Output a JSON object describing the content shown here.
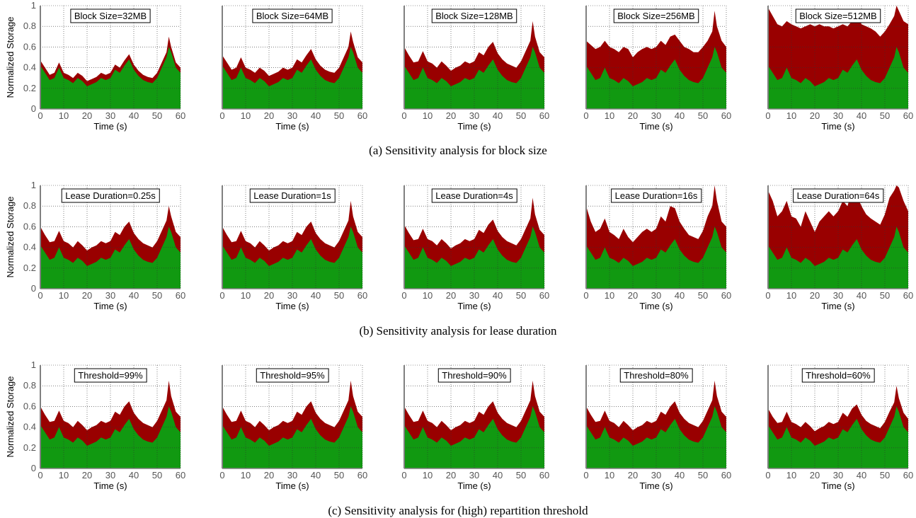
{
  "colors": {
    "used": "#119911",
    "allocated": "#990000"
  },
  "captions": [
    "(a)  Sensitivity analysis for block size",
    "(b)  Sensitivity analysis for lease duration",
    "(c)  Sensitivity analysis for (high) repartition threshold"
  ],
  "chart_data": [
    {
      "type": "area",
      "ylabel": "Normalized Storage",
      "xlabel": "Time (s)",
      "xlim": [
        0,
        60
      ],
      "ylim": [
        0,
        1
      ],
      "x_ticks": [
        0,
        10,
        20,
        30,
        40,
        50,
        60
      ],
      "y_ticks": [
        0,
        0.2,
        0.4,
        0.6,
        0.8,
        1
      ],
      "y_tick_labels": [
        "0",
        "0.2",
        "0.4",
        "0.6",
        "0.8",
        "1"
      ],
      "grid": true,
      "x": [
        0,
        2,
        4,
        6,
        8,
        10,
        12,
        14,
        16,
        18,
        20,
        22,
        24,
        26,
        28,
        30,
        32,
        34,
        36,
        38,
        40,
        42,
        44,
        46,
        48,
        50,
        52,
        54,
        55,
        56,
        58,
        60
      ],
      "used": [
        0.42,
        0.35,
        0.28,
        0.3,
        0.4,
        0.3,
        0.28,
        0.25,
        0.3,
        0.27,
        0.22,
        0.24,
        0.26,
        0.3,
        0.28,
        0.3,
        0.38,
        0.35,
        0.42,
        0.48,
        0.38,
        0.32,
        0.28,
        0.26,
        0.25,
        0.3,
        0.4,
        0.5,
        0.6,
        0.55,
        0.4,
        0.35
      ],
      "groups": [
        {
          "panels": [
            {
              "label": "Block Size=32MB",
              "allocated": [
                0.47,
                0.4,
                0.33,
                0.35,
                0.45,
                0.35,
                0.33,
                0.3,
                0.35,
                0.32,
                0.27,
                0.29,
                0.31,
                0.35,
                0.33,
                0.35,
                0.43,
                0.4,
                0.47,
                0.53,
                0.43,
                0.37,
                0.33,
                0.31,
                0.3,
                0.35,
                0.45,
                0.55,
                0.7,
                0.6,
                0.45,
                0.4
              ]
            },
            {
              "label": "Block Size=64MB",
              "allocated": [
                0.52,
                0.45,
                0.38,
                0.4,
                0.5,
                0.4,
                0.38,
                0.35,
                0.4,
                0.37,
                0.32,
                0.34,
                0.36,
                0.4,
                0.38,
                0.4,
                0.48,
                0.45,
                0.52,
                0.58,
                0.48,
                0.42,
                0.38,
                0.36,
                0.35,
                0.4,
                0.5,
                0.6,
                0.75,
                0.65,
                0.5,
                0.45
              ]
            },
            {
              "label": "Block Size=128MB",
              "allocated": [
                0.6,
                0.52,
                0.45,
                0.46,
                0.56,
                0.46,
                0.44,
                0.4,
                0.46,
                0.42,
                0.37,
                0.4,
                0.42,
                0.46,
                0.44,
                0.46,
                0.55,
                0.52,
                0.6,
                0.65,
                0.54,
                0.48,
                0.44,
                0.42,
                0.4,
                0.46,
                0.56,
                0.66,
                0.85,
                0.7,
                0.55,
                0.5
              ]
            },
            {
              "label": "Block Size=256MB",
              "allocated": [
                0.66,
                0.62,
                0.58,
                0.6,
                0.66,
                0.6,
                0.58,
                0.55,
                0.6,
                0.58,
                0.5,
                0.55,
                0.58,
                0.6,
                0.58,
                0.6,
                0.66,
                0.62,
                0.7,
                0.72,
                0.66,
                0.6,
                0.58,
                0.55,
                0.55,
                0.6,
                0.66,
                0.75,
                0.95,
                0.8,
                0.66,
                0.6
              ]
            },
            {
              "label": "Block Size=512MB",
              "allocated": [
                0.98,
                0.9,
                0.82,
                0.8,
                0.85,
                0.82,
                0.8,
                0.78,
                0.8,
                0.82,
                0.8,
                0.82,
                0.8,
                0.8,
                0.78,
                0.8,
                0.82,
                0.8,
                0.85,
                0.9,
                0.82,
                0.8,
                0.78,
                0.75,
                0.7,
                0.75,
                0.82,
                0.9,
                1.0,
                0.95,
                0.85,
                0.82
              ]
            }
          ]
        },
        {
          "panels": [
            {
              "label": "Lease Duration=0.25s",
              "allocated": [
                0.6,
                0.52,
                0.45,
                0.46,
                0.56,
                0.46,
                0.44,
                0.4,
                0.46,
                0.42,
                0.37,
                0.4,
                0.42,
                0.46,
                0.44,
                0.46,
                0.55,
                0.52,
                0.6,
                0.65,
                0.54,
                0.48,
                0.44,
                0.42,
                0.4,
                0.46,
                0.56,
                0.66,
                0.8,
                0.7,
                0.55,
                0.5
              ]
            },
            {
              "label": "Lease Duration=1s",
              "allocated": [
                0.6,
                0.52,
                0.45,
                0.46,
                0.56,
                0.46,
                0.44,
                0.4,
                0.46,
                0.42,
                0.37,
                0.4,
                0.42,
                0.46,
                0.44,
                0.46,
                0.55,
                0.52,
                0.6,
                0.65,
                0.54,
                0.48,
                0.44,
                0.42,
                0.4,
                0.46,
                0.56,
                0.66,
                0.85,
                0.7,
                0.55,
                0.5
              ]
            },
            {
              "label": "Lease Duration=4s",
              "allocated": [
                0.62,
                0.54,
                0.47,
                0.48,
                0.58,
                0.48,
                0.46,
                0.42,
                0.48,
                0.44,
                0.39,
                0.42,
                0.44,
                0.48,
                0.46,
                0.48,
                0.57,
                0.54,
                0.62,
                0.67,
                0.56,
                0.5,
                0.46,
                0.44,
                0.42,
                0.48,
                0.58,
                0.68,
                0.88,
                0.72,
                0.57,
                0.52
              ]
            },
            {
              "label": "Lease Duration=16s",
              "allocated": [
                0.8,
                0.65,
                0.55,
                0.58,
                0.68,
                0.55,
                0.52,
                0.48,
                0.58,
                0.5,
                0.45,
                0.5,
                0.55,
                0.58,
                0.55,
                0.58,
                0.7,
                0.65,
                0.8,
                0.78,
                0.65,
                0.58,
                0.52,
                0.5,
                0.48,
                0.56,
                0.7,
                0.8,
                1.0,
                0.85,
                0.65,
                0.6
              ]
            },
            {
              "label": "Lease Duration=64s",
              "allocated": [
                0.95,
                0.85,
                0.7,
                0.75,
                0.85,
                0.7,
                0.68,
                0.6,
                0.75,
                0.65,
                0.55,
                0.65,
                0.7,
                0.75,
                0.7,
                0.75,
                0.85,
                0.8,
                0.95,
                0.9,
                0.8,
                0.72,
                0.68,
                0.65,
                0.62,
                0.72,
                0.88,
                0.95,
                1.0,
                0.98,
                0.85,
                0.75
              ]
            }
          ]
        },
        {
          "panels": [
            {
              "label": "Threshold=99%",
              "allocated": [
                0.6,
                0.52,
                0.45,
                0.46,
                0.56,
                0.46,
                0.44,
                0.4,
                0.46,
                0.42,
                0.37,
                0.4,
                0.42,
                0.46,
                0.44,
                0.46,
                0.55,
                0.52,
                0.6,
                0.65,
                0.54,
                0.48,
                0.44,
                0.42,
                0.4,
                0.46,
                0.56,
                0.66,
                0.85,
                0.7,
                0.55,
                0.5
              ]
            },
            {
              "label": "Threshold=95%",
              "allocated": [
                0.6,
                0.52,
                0.45,
                0.46,
                0.56,
                0.46,
                0.44,
                0.4,
                0.46,
                0.42,
                0.37,
                0.4,
                0.42,
                0.46,
                0.44,
                0.46,
                0.55,
                0.52,
                0.6,
                0.65,
                0.54,
                0.48,
                0.44,
                0.42,
                0.4,
                0.46,
                0.56,
                0.66,
                0.85,
                0.7,
                0.55,
                0.5
              ]
            },
            {
              "label": "Threshold=90%",
              "allocated": [
                0.6,
                0.52,
                0.45,
                0.46,
                0.56,
                0.46,
                0.44,
                0.4,
                0.46,
                0.42,
                0.37,
                0.4,
                0.42,
                0.46,
                0.44,
                0.46,
                0.55,
                0.52,
                0.6,
                0.65,
                0.54,
                0.48,
                0.44,
                0.42,
                0.4,
                0.46,
                0.56,
                0.66,
                0.85,
                0.7,
                0.55,
                0.5
              ]
            },
            {
              "label": "Threshold=80%",
              "allocated": [
                0.6,
                0.52,
                0.45,
                0.46,
                0.56,
                0.46,
                0.44,
                0.4,
                0.46,
                0.42,
                0.37,
                0.4,
                0.42,
                0.46,
                0.44,
                0.46,
                0.55,
                0.52,
                0.6,
                0.65,
                0.54,
                0.48,
                0.44,
                0.42,
                0.4,
                0.46,
                0.56,
                0.66,
                0.85,
                0.7,
                0.55,
                0.5
              ]
            },
            {
              "label": "Threshold=60%",
              "allocated": [
                0.58,
                0.5,
                0.44,
                0.45,
                0.55,
                0.45,
                0.43,
                0.4,
                0.45,
                0.41,
                0.36,
                0.39,
                0.41,
                0.45,
                0.43,
                0.45,
                0.54,
                0.5,
                0.58,
                0.62,
                0.52,
                0.46,
                0.43,
                0.41,
                0.39,
                0.45,
                0.55,
                0.64,
                0.8,
                0.68,
                0.54,
                0.48
              ]
            }
          ]
        }
      ]
    }
  ]
}
